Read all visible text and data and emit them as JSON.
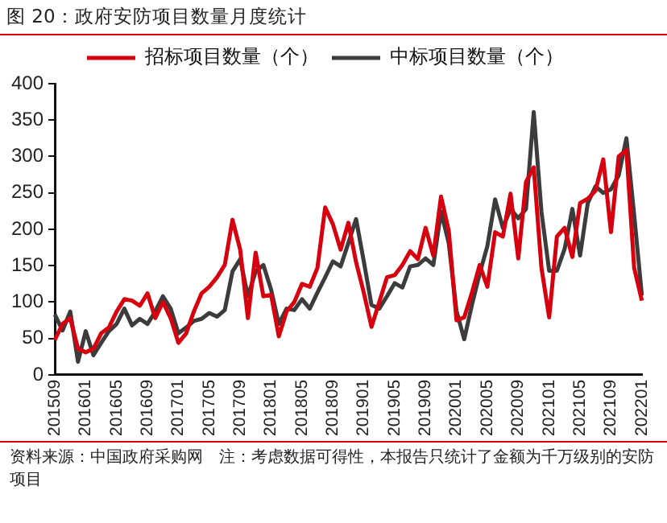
{
  "chart_data": {
    "type": "line",
    "title": "图 20：政府安防项目数量月度统计",
    "categories": [
      "201509",
      null,
      null,
      null,
      "201601",
      null,
      null,
      null,
      "201605",
      null,
      null,
      null,
      "201609",
      null,
      null,
      null,
      "201701",
      null,
      null,
      null,
      "201705",
      null,
      null,
      null,
      "201709",
      null,
      null,
      null,
      "201801",
      null,
      null,
      null,
      "201805",
      null,
      null,
      null,
      "201809",
      null,
      null,
      null,
      "201901",
      null,
      null,
      null,
      "201905",
      null,
      null,
      null,
      "201909",
      null,
      null,
      null,
      "202001",
      null,
      null,
      null,
      "202005",
      null,
      null,
      null,
      "202009",
      null,
      null,
      null,
      "202101",
      null,
      null,
      null,
      "202105",
      null,
      null,
      null,
      "202109",
      null,
      null,
      null,
      "202201"
    ],
    "series": [
      {
        "name": "招标项目数量（个）",
        "color": "#d7000f",
        "values": [
          48,
          70,
          78,
          36,
          31,
          36,
          57,
          65,
          87,
          104,
          102,
          95,
          112,
          78,
          100,
          78,
          44,
          57,
          87,
          112,
          121,
          134,
          151,
          213,
          172,
          78,
          168,
          108,
          110,
          53,
          87,
          100,
          125,
          121,
          147,
          230,
          207,
          172,
          209,
          155,
          113,
          66,
          100,
          134,
          137,
          151,
          170,
          159,
          202,
          164,
          245,
          198,
          75,
          79,
          113,
          151,
          121,
          196,
          190,
          249,
          160,
          265,
          285,
          147,
          79,
          190,
          202,
          162,
          236,
          242,
          253,
          296,
          196,
          300,
          309,
          147,
          102
        ]
      },
      {
        "name": "中标项目数量（个）",
        "color": "#3c3c3c",
        "values": [
          83,
          61,
          87,
          18,
          60,
          27,
          44,
          60,
          70,
          91,
          68,
          77,
          70,
          87,
          108,
          91,
          57,
          65,
          74,
          77,
          85,
          80,
          89,
          142,
          159,
          108,
          142,
          151,
          117,
          70,
          91,
          89,
          104,
          91,
          113,
          134,
          156,
          149,
          181,
          214,
          156,
          96,
          91,
          108,
          126,
          120,
          149,
          151,
          160,
          151,
          224,
          181,
          88,
          49,
          96,
          139,
          177,
          241,
          202,
          228,
          215,
          228,
          361,
          224,
          143,
          143,
          173,
          228,
          164,
          236,
          259,
          250,
          255,
          274,
          325,
          220,
          109
        ]
      }
    ],
    "ylim": [
      0,
      400
    ],
    "yticks": [
      0,
      50,
      100,
      150,
      200,
      250,
      300,
      350,
      400
    ],
    "grid": false,
    "legend": "top",
    "marker": "none",
    "line_style": "solid",
    "annotations": [
      "资料来源：中国政府采购网　注：考虑数据可得性，本报告只统计了金额为千万级别的安防项目"
    ]
  }
}
